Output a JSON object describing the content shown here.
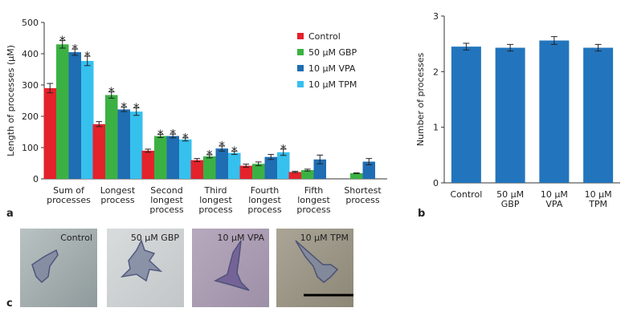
{
  "chart_data": [
    {
      "type": "bar",
      "panel_label": "a",
      "y_label": "Length of processes (µM)",
      "categories": [
        "Sum of\nprocesses",
        "Longest\nprocess",
        "Second\nlongest\nprocess",
        "Third\nlongest\nprocess",
        "Fourth\nlongest\nprocess",
        "Fifth\nlongest\nprocess",
        "Shortest\nprocess"
      ],
      "series": [
        {
          "name": "Control",
          "color": "#e3222b",
          "values": [
            290,
            175,
            90,
            60,
            42,
            22,
            null
          ],
          "errors": [
            15,
            8,
            5,
            5,
            5,
            2,
            null
          ],
          "markers": [
            null,
            null,
            null,
            null,
            null,
            null,
            null
          ]
        },
        {
          "name": "50 µM GBP",
          "color": "#3bb143",
          "values": [
            430,
            268,
            137,
            72,
            48,
            28,
            18
          ],
          "errors": [
            12,
            10,
            5,
            5,
            6,
            3,
            1
          ],
          "markers": [
            "*",
            "*",
            "*",
            "*",
            null,
            null,
            null
          ]
        },
        {
          "name": "10 µM VPA",
          "color": "#1f6db3",
          "values": [
            405,
            222,
            137,
            97,
            70,
            62,
            55
          ],
          "errors": [
            10,
            7,
            6,
            8,
            8,
            14,
            10
          ],
          "markers": [
            "*",
            "*",
            "*",
            "*",
            null,
            null,
            null
          ]
        },
        {
          "name": "10 µM TPM",
          "color": "#36c0ee",
          "values": [
            377,
            215,
            126,
            83,
            85,
            null,
            null
          ],
          "errors": [
            15,
            12,
            5,
            5,
            10,
            null,
            null
          ],
          "markers": [
            "*",
            "*",
            "*",
            "*",
            "*",
            null,
            null
          ]
        }
      ],
      "ylim": [
        0,
        500
      ],
      "yticks": [
        0,
        100,
        200,
        300,
        400,
        500
      ],
      "legend": "upper right"
    },
    {
      "type": "bar",
      "panel_label": "b",
      "y_label": "Number of processes",
      "categories": [
        "Control",
        "50 µM\nGBP",
        "10 µM\nVPA",
        "10 µM\nTPM"
      ],
      "series": [
        {
          "color": "#2275bd",
          "values": [
            2.45,
            2.43,
            2.56,
            2.43
          ],
          "errors": [
            0.06,
            0.06,
            0.07,
            0.06
          ]
        }
      ],
      "ylim": [
        0,
        3
      ],
      "yticks": [
        0,
        1,
        2,
        3
      ]
    }
  ],
  "panel_c": {
    "panel_label": "c",
    "images": [
      "Control",
      "50 µM GBP",
      "10 µM VPA",
      "10 µM TPM"
    ]
  }
}
